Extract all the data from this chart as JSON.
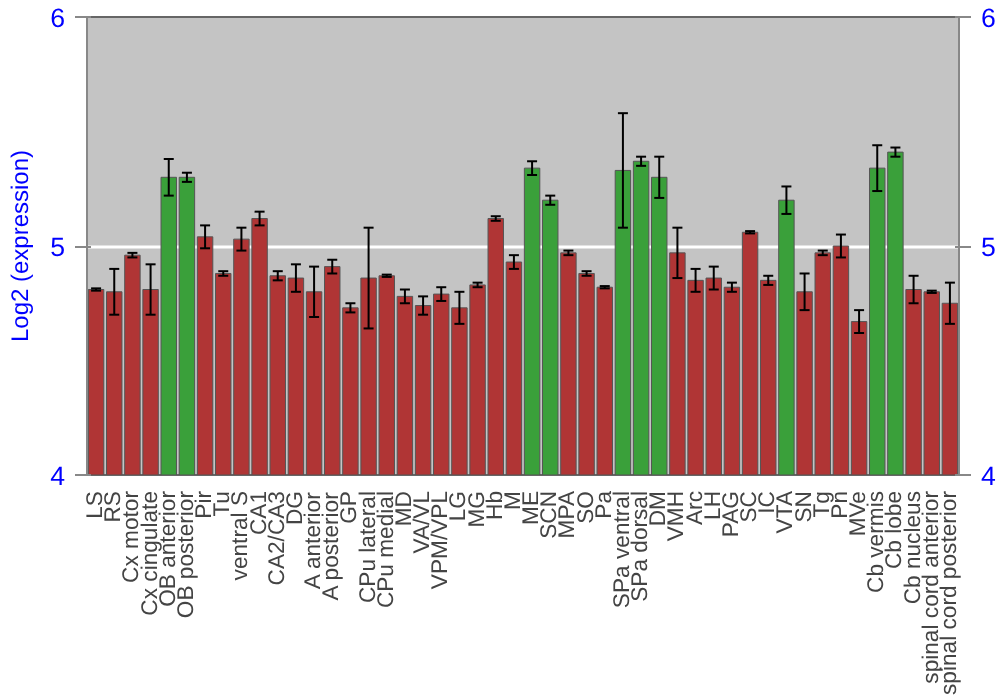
{
  "chart_data": {
    "type": "bar",
    "ylabel": "Log2 (expression)",
    "categories": [
      "LS",
      "RS",
      "Cx motor",
      "Cx cingulate",
      "OB anterior",
      "OB posterior",
      "Pir",
      "Tu",
      "ventral S",
      "CA1",
      "CA2/CA3",
      "DG",
      "A anterior",
      "A posterior",
      "GP",
      "CPu lateral",
      "CPu medial",
      "MD",
      "VA/VL",
      "VPM/VPL",
      "LG",
      "MG",
      "Hb",
      "M",
      "ME",
      "SCN",
      "MPA",
      "SO",
      "Pa",
      "SPa ventral",
      "SPa dorsal",
      "DM",
      "VMH",
      "Arc",
      "LH",
      "PAG",
      "SC",
      "IC",
      "VTA",
      "SN",
      "Tg",
      "Pn",
      "MVe",
      "Cb vermis",
      "Cb lobe",
      "Cb nucleus",
      "spinal cord anterior",
      "spinal cord posterior"
    ],
    "values": [
      4.81,
      4.8,
      4.96,
      4.81,
      5.3,
      5.3,
      5.04,
      4.88,
      5.03,
      5.12,
      4.87,
      4.86,
      4.8,
      4.91,
      4.73,
      4.86,
      4.87,
      4.78,
      4.74,
      4.79,
      4.73,
      4.83,
      5.12,
      4.93,
      5.34,
      5.2,
      4.97,
      4.88,
      4.82,
      5.33,
      5.37,
      5.3,
      4.97,
      4.85,
      4.86,
      4.82,
      5.06,
      4.85,
      5.2,
      4.8,
      4.97,
      5.0,
      4.67,
      5.34,
      5.41,
      4.81,
      4.8,
      4.75
    ],
    "errors": [
      0.005,
      0.1,
      0.01,
      0.11,
      0.08,
      0.02,
      0.05,
      0.01,
      0.05,
      0.03,
      0.02,
      0.06,
      0.11,
      0.03,
      0.02,
      0.22,
      0.005,
      0.03,
      0.04,
      0.03,
      0.07,
      0.01,
      0.01,
      0.03,
      0.03,
      0.02,
      0.01,
      0.01,
      0.005,
      0.25,
      0.02,
      0.09,
      0.11,
      0.05,
      0.05,
      0.02,
      0.005,
      0.02,
      0.06,
      0.08,
      0.01,
      0.05,
      0.05,
      0.1,
      0.02,
      0.06,
      0.005,
      0.09
    ],
    "colors": [
      "#b03535",
      "#b03535",
      "#b03535",
      "#b03535",
      "#3aa03a",
      "#3aa03a",
      "#b03535",
      "#b03535",
      "#b03535",
      "#b03535",
      "#b03535",
      "#b03535",
      "#b03535",
      "#b03535",
      "#b03535",
      "#b03535",
      "#b03535",
      "#b03535",
      "#b03535",
      "#b03535",
      "#b03535",
      "#b03535",
      "#b03535",
      "#b03535",
      "#3aa03a",
      "#3aa03a",
      "#b03535",
      "#b03535",
      "#b03535",
      "#3aa03a",
      "#3aa03a",
      "#3aa03a",
      "#b03535",
      "#b03535",
      "#b03535",
      "#b03535",
      "#b03535",
      "#b03535",
      "#3aa03a",
      "#b03535",
      "#b03535",
      "#b03535",
      "#b03535",
      "#3aa03a",
      "#3aa03a",
      "#b03535",
      "#b03535",
      "#b03535"
    ],
    "ylim": [
      4,
      6
    ],
    "yticks": [
      4,
      5,
      6
    ],
    "y2lim": [
      4,
      6
    ],
    "y2ticks": [
      4,
      5,
      6
    ],
    "grid": "y"
  }
}
